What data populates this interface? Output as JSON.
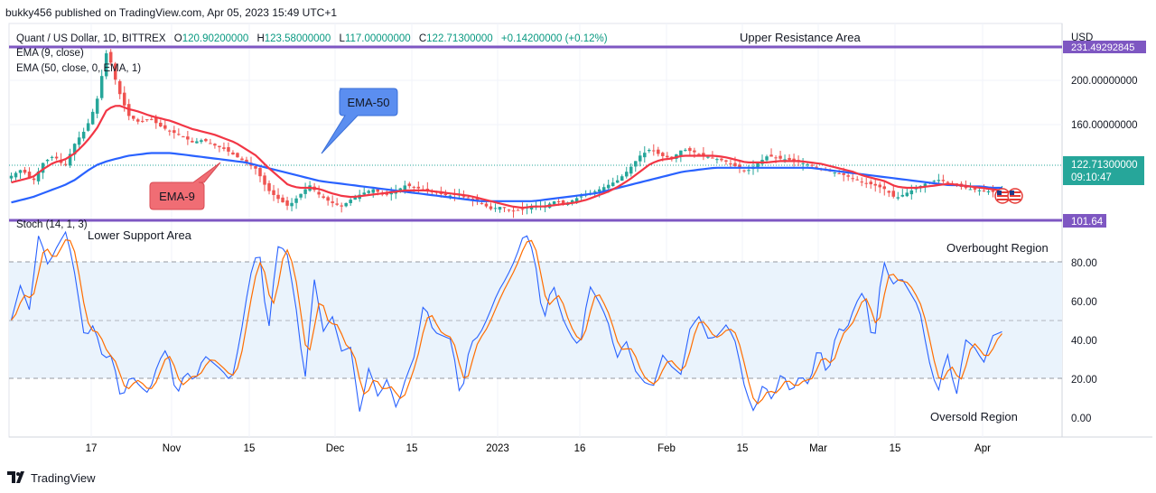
{
  "publish_line": "bukky456 published on TradingView.com, Apr 05, 2023 15:49 UTC+1",
  "footer": {
    "brand": "TradingView",
    "logo_icon": "tradingview-logo-icon"
  },
  "legend": {
    "symbol": "Quant / US Dollar, 1D, BITTREX",
    "ohlc": [
      {
        "key": "O",
        "value": "120.90200000"
      },
      {
        "key": "H",
        "value": "123.58000000"
      },
      {
        "key": "L",
        "value": "117.00000000"
      },
      {
        "key": "C",
        "value": "122.71300000"
      }
    ],
    "change": "+0.14200000 (+0.12%)",
    "ema9": "EMA (9, close)",
    "ema50": "EMA (50, close, 0, EMA, 1)"
  },
  "annotations": {
    "upper_resistance": "Upper Resistance Area",
    "ema50_callout": "EMA-50",
    "ema9_callout": "EMA-9",
    "lower_support": "Lower Support Area",
    "overbought": "Overbought Region",
    "oversold": "Oversold Region"
  },
  "price_axis": {
    "currency": "USD",
    "ticks": [
      "200.00000000",
      "160.00000000"
    ],
    "resistance_label": "231.49292845",
    "current_price": "122.71300000",
    "countdown": "09:10:47",
    "support_label": "101.64"
  },
  "stoch": {
    "title": "Stoch (14, 1, 3)",
    "ticks": [
      "80.00",
      "60.00",
      "40.00",
      "20.00",
      "0.00"
    ]
  },
  "time_axis": {
    "labels": [
      "17",
      "Nov",
      "15",
      "Dec",
      "15",
      "2023",
      "16",
      "Feb",
      "15",
      "Mar",
      "15",
      "Apr"
    ]
  },
  "colors": {
    "up": "#26a69a",
    "down": "#ef5350",
    "ema9": "#f23645",
    "ema50": "#2962ff",
    "resistance": "#7e57c2",
    "stoch_k": "#2962ff",
    "stoch_d": "#ff6d00",
    "callout_blue": "#5b8ef0",
    "callout_red": "#f06d74"
  },
  "chart_data": {
    "type": "candlestick",
    "price_range": [
      101.64,
      231.49292845
    ],
    "resistance": 231.49292845,
    "support": 101.64,
    "last_close": 122.713,
    "stoch_range": [
      0,
      100
    ],
    "stoch_levels": [
      80,
      50,
      20
    ],
    "price_anchors": [
      135,
      140,
      130,
      145,
      150,
      142,
      160,
      170,
      190,
      230,
      200,
      180,
      175,
      178,
      172,
      168,
      165,
      160,
      162,
      158,
      155,
      150,
      145,
      140,
      125,
      118,
      112,
      120,
      128,
      120,
      115,
      112,
      118,
      122,
      125,
      120,
      123,
      128,
      126,
      124,
      122,
      120,
      121,
      118,
      115,
      110,
      112,
      108,
      110,
      113,
      112,
      116,
      114,
      118,
      121,
      124,
      128,
      132,
      140,
      150,
      155,
      150,
      148,
      155,
      153,
      150,
      148,
      146,
      142,
      138,
      144,
      150,
      148,
      147,
      145,
      143,
      140,
      138,
      136,
      133,
      130,
      128,
      125,
      118,
      122,
      126,
      130,
      132,
      130,
      127,
      125,
      124,
      123,
      122
    ],
    "ema9_anchors": [
      130,
      132,
      134,
      140,
      145,
      147,
      152,
      160,
      170,
      185,
      188,
      185,
      183,
      180,
      178,
      176,
      173,
      170,
      168,
      166,
      163,
      160,
      155,
      150,
      142,
      135,
      128,
      126,
      126,
      125,
      122,
      120,
      119,
      120,
      121,
      122,
      123,
      124,
      124,
      124,
      123,
      122,
      121,
      120,
      118,
      116,
      114,
      112,
      111,
      112,
      112,
      113,
      114,
      115,
      117,
      120,
      123,
      127,
      132,
      138,
      144,
      147,
      148,
      150,
      150,
      150,
      150,
      149,
      147,
      145,
      145,
      145,
      146,
      146,
      146,
      145,
      144,
      142,
      140,
      138,
      135,
      133,
      131,
      127,
      126,
      126,
      127,
      128,
      129,
      128,
      127,
      126,
      125,
      124
    ],
    "ema50_anchors": [
      115,
      117,
      119,
      122,
      125,
      128,
      132,
      138,
      143,
      146,
      148,
      150,
      151,
      152,
      152,
      152,
      151,
      150,
      149,
      148,
      147,
      146,
      145,
      143,
      141,
      139,
      137,
      135,
      133,
      131,
      130,
      129,
      128,
      127,
      126,
      125,
      124,
      123,
      122,
      121,
      120,
      119,
      118,
      117,
      116,
      116,
      116,
      116,
      116,
      116,
      117,
      118,
      119,
      120,
      121,
      122,
      124,
      126,
      128,
      130,
      132,
      134,
      136,
      138,
      139,
      140,
      141,
      141,
      141,
      141,
      141,
      141,
      141,
      141,
      141,
      141,
      140,
      139,
      138,
      137,
      136,
      135,
      134,
      133,
      132,
      131,
      130,
      129,
      128,
      128,
      127,
      127,
      126,
      126
    ],
    "stoch_k_anchors": [
      50,
      68,
      55,
      95,
      78,
      88,
      96,
      72,
      40,
      48,
      30,
      32,
      8,
      22,
      16,
      12,
      28,
      36,
      10,
      24,
      18,
      32,
      28,
      24,
      18,
      42,
      72,
      88,
      42,
      88,
      86,
      58,
      18,
      72,
      44,
      52,
      34,
      36,
      2,
      26,
      10,
      20,
      4,
      20,
      32,
      60,
      44,
      42,
      40,
      8,
      38,
      42,
      52,
      64,
      72,
      82,
      96,
      84,
      48,
      70,
      52,
      42,
      36,
      68,
      60,
      50,
      30,
      40,
      24,
      18,
      16,
      32,
      26,
      22,
      46,
      52,
      40,
      42,
      48,
      38,
      14,
      2,
      18,
      8,
      24,
      12,
      22,
      16,
      38,
      20,
      46,
      44,
      58,
      66,
      34,
      82,
      68,
      72,
      64,
      56,
      30,
      12,
      34,
      10,
      40,
      36,
      28,
      42,
      44
    ]
  }
}
